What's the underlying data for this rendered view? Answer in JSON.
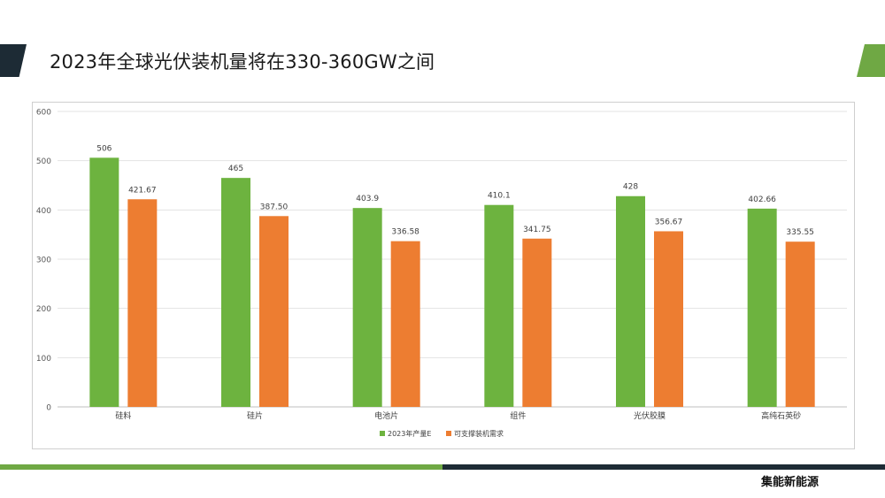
{
  "slide": {
    "title": "2023年全球光伏装机量将在330-360GW之间",
    "brand": "集能新能源",
    "colors": {
      "dark": "#1d2b35",
      "green": "#6fa844"
    }
  },
  "chart_data": {
    "type": "bar",
    "categories": [
      "硅料",
      "硅片",
      "电池片",
      "组件",
      "光伏胶膜",
      "高纯石英砂"
    ],
    "series": [
      {
        "name": "2023年产量E",
        "color": "#6db33f",
        "values": [
          506,
          465,
          403.9,
          410.1,
          428,
          402.66
        ],
        "labels": [
          "506",
          "465",
          "403.9",
          "410.1",
          "428",
          "402.66"
        ]
      },
      {
        "name": "可支撑装机需求",
        "color": "#ed7d31",
        "values": [
          421.67,
          387.5,
          336.58,
          341.75,
          356.67,
          335.55
        ],
        "labels": [
          "421.67",
          "387.50",
          "336.58",
          "341.75",
          "356.67",
          "335.55"
        ]
      }
    ],
    "y_ticks": [
      0,
      100,
      200,
      300,
      400,
      500,
      600
    ],
    "ylim": [
      0,
      600
    ],
    "grid": true,
    "legend_position": "bottom"
  }
}
